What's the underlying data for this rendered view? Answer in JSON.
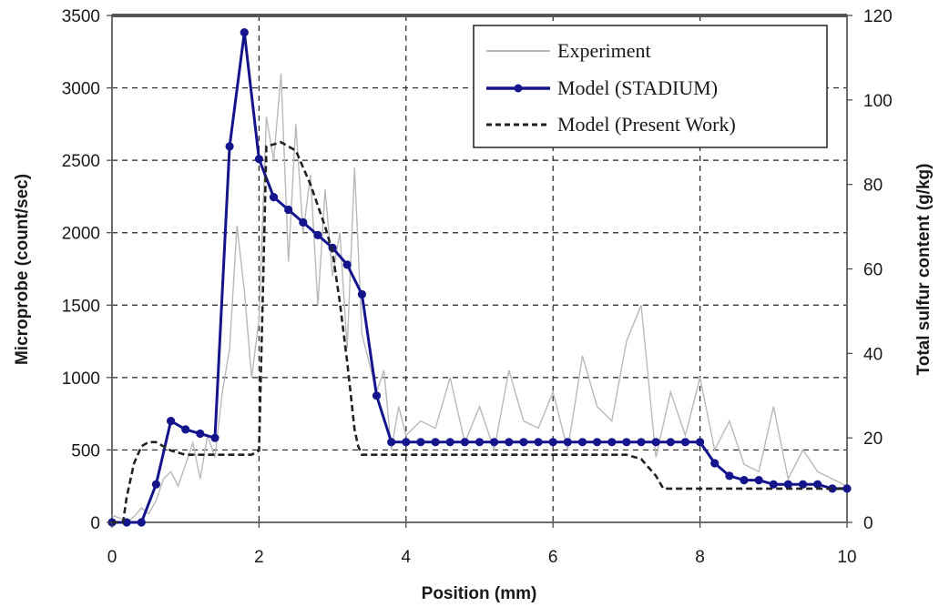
{
  "chart_data": {
    "type": "line",
    "xlabel": "Position (mm)",
    "ylabel_left": "Microprobe (count/sec)",
    "ylabel_right": "Total sulfur content (g/kg)",
    "xlim": [
      0,
      10
    ],
    "ylim_left": [
      0,
      3500
    ],
    "ylim_right": [
      0,
      120
    ],
    "x_ticks": [
      "0",
      "2",
      "4",
      "6",
      "8",
      "10"
    ],
    "y_left_ticks": [
      "0",
      "500",
      "1000",
      "1500",
      "2000",
      "2500",
      "3000",
      "3500"
    ],
    "y_right_ticks": [
      "0",
      "20",
      "40",
      "60",
      "80",
      "100",
      "120"
    ],
    "grid": true,
    "legend_position": "top-right",
    "series": [
      {
        "name": "Experiment",
        "axis": "left",
        "color": "#b9b9b9",
        "style": "solid-noisy",
        "x": [
          0.0,
          0.1,
          0.2,
          0.3,
          0.4,
          0.5,
          0.6,
          0.7,
          0.8,
          0.9,
          1.0,
          1.1,
          1.2,
          1.3,
          1.4,
          1.5,
          1.6,
          1.7,
          1.8,
          1.9,
          2.0,
          2.1,
          2.2,
          2.3,
          2.4,
          2.5,
          2.6,
          2.7,
          2.8,
          2.9,
          3.0,
          3.1,
          3.2,
          3.3,
          3.4,
          3.5,
          3.6,
          3.7,
          3.8,
          3.9,
          4.0,
          4.2,
          4.4,
          4.6,
          4.8,
          5.0,
          5.2,
          5.4,
          5.6,
          5.8,
          6.0,
          6.2,
          6.4,
          6.6,
          6.8,
          7.0,
          7.2,
          7.4,
          7.6,
          7.8,
          8.0,
          8.2,
          8.4,
          8.6,
          8.8,
          9.0,
          9.2,
          9.4,
          9.6,
          9.8,
          10.0
        ],
        "values": [
          50,
          30,
          0,
          40,
          100,
          60,
          150,
          300,
          350,
          250,
          400,
          550,
          300,
          600,
          450,
          900,
          1200,
          2050,
          1600,
          1000,
          1400,
          2800,
          2500,
          3100,
          1800,
          2750,
          2000,
          2400,
          1500,
          2300,
          1700,
          2000,
          1200,
          2450,
          1300,
          1100,
          900,
          1050,
          500,
          800,
          600,
          700,
          650,
          1000,
          550,
          800,
          500,
          1050,
          700,
          650,
          900,
          500,
          1150,
          800,
          700,
          1250,
          1500,
          450,
          900,
          600,
          1000,
          500,
          700,
          400,
          350,
          800,
          300,
          500,
          350,
          300,
          250
        ]
      },
      {
        "name": "Model (STADIUM)",
        "axis": "right",
        "color": "#14158c",
        "style": "solid-markers",
        "x": [
          0.0,
          0.2,
          0.4,
          0.6,
          0.8,
          1.0,
          1.2,
          1.4,
          1.6,
          1.8,
          2.0,
          2.2,
          2.4,
          2.6,
          2.8,
          3.0,
          3.2,
          3.4,
          3.6,
          3.8,
          4.0,
          4.2,
          4.4,
          4.6,
          4.8,
          5.0,
          5.2,
          5.4,
          5.6,
          5.8,
          6.0,
          6.2,
          6.4,
          6.6,
          6.8,
          7.0,
          7.2,
          7.4,
          7.6,
          7.8,
          8.0,
          8.2,
          8.4,
          8.6,
          8.8,
          9.0,
          9.2,
          9.4,
          9.6,
          9.8,
          10.0
        ],
        "values": [
          0,
          0,
          0,
          9,
          24,
          22,
          21,
          20,
          89,
          116,
          86,
          77,
          74,
          71,
          68,
          65,
          61,
          54,
          30,
          19,
          19,
          19,
          19,
          19,
          19,
          19,
          19,
          19,
          19,
          19,
          19,
          19,
          19,
          19,
          19,
          19,
          19,
          19,
          19,
          19,
          19,
          14,
          11,
          10,
          10,
          9,
          9,
          9,
          9,
          8,
          8
        ]
      },
      {
        "name": "Model (Present Work)",
        "axis": "right",
        "color": "#222222",
        "style": "dashed",
        "x": [
          0.0,
          0.15,
          0.2,
          0.3,
          0.4,
          0.5,
          0.6,
          0.8,
          1.0,
          1.5,
          1.9,
          2.0,
          2.1,
          2.3,
          2.5,
          2.7,
          2.9,
          3.0,
          3.1,
          3.2,
          3.3,
          3.35,
          3.4,
          3.6,
          4.0,
          5.0,
          6.0,
          7.0,
          7.2,
          7.4,
          7.5,
          8.0,
          9.0,
          10.0
        ],
        "values": [
          0,
          0,
          6,
          14,
          18,
          19,
          19,
          17,
          16,
          16,
          16,
          17,
          89,
          90,
          88,
          80,
          70,
          64,
          52,
          38,
          22,
          18,
          16,
          16,
          16,
          16,
          16,
          16,
          15,
          11,
          8,
          8,
          8,
          8
        ]
      }
    ]
  }
}
